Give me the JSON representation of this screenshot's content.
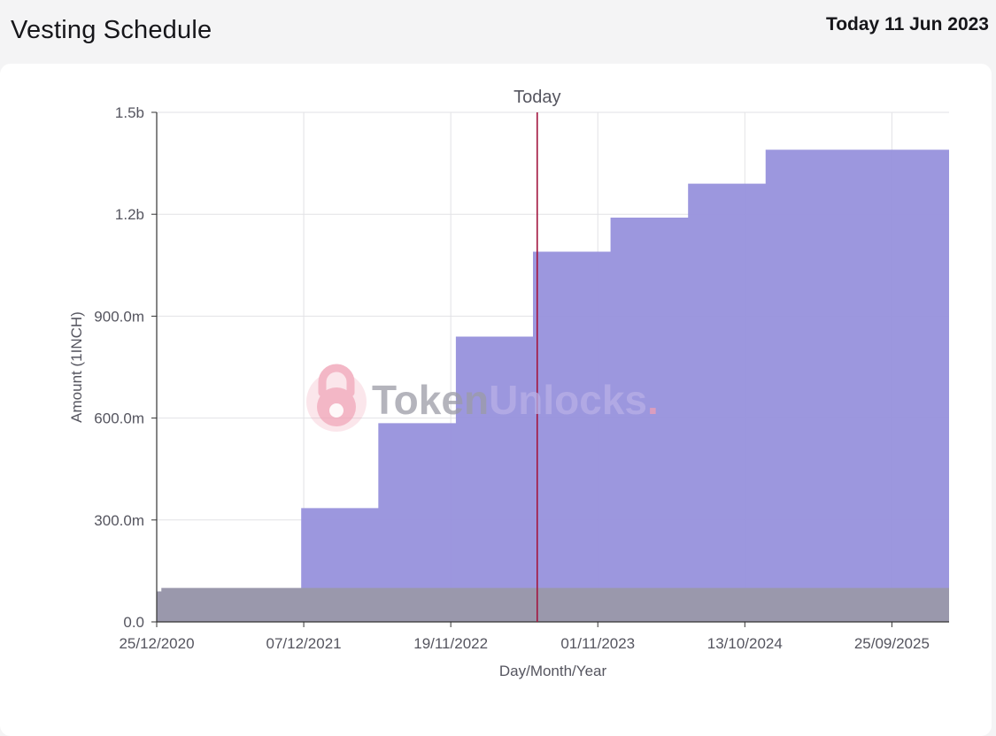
{
  "header": {
    "title": "Vesting Schedule",
    "today_label": "Today 11 Jun 2023"
  },
  "watermark": {
    "part1": "Token",
    "part2": "Unlocks",
    "dot": ".",
    "color1": "#9b9ba6",
    "color2": "#b8b0e6",
    "logo_color": "#f0a0b4"
  },
  "chart_data": {
    "type": "area",
    "step": true,
    "stacked": true,
    "xlabel": "Day/Month/Year",
    "ylabel": "Amount (1INCH)",
    "x_range": [
      "2020-12-25",
      "2026-02-07"
    ],
    "ylim": [
      0,
      1500000000
    ],
    "y_ticks": [
      0,
      300000000,
      600000000,
      900000000,
      1200000000,
      1500000000
    ],
    "y_tick_labels": [
      "0.0",
      "300.0m",
      "600.0m",
      "900.0m",
      "1.2b",
      "1.5b"
    ],
    "x_ticks": [
      "2020-12-25",
      "2021-12-07",
      "2022-11-19",
      "2023-11-01",
      "2024-10-13",
      "2025-09-25"
    ],
    "x_tick_labels": [
      "25/12/2020",
      "07/12/2021",
      "19/11/2022",
      "01/11/2023",
      "13/10/2024",
      "25/09/2025"
    ],
    "grid": true,
    "today": {
      "label": "Today",
      "date": "2023-06-11",
      "color": "#a3163f"
    },
    "series": [
      {
        "color": "#9791dc",
        "steps": [
          [
            "2020-12-25",
            0
          ],
          [
            "2021-12-01",
            235000000
          ],
          [
            "2022-06-01",
            485000000
          ],
          [
            "2022-12-01",
            740000000
          ],
          [
            "2023-06-01",
            990000000
          ],
          [
            "2023-12-01",
            1090000000
          ],
          [
            "2024-06-01",
            1190000000
          ],
          [
            "2024-12-01",
            1290000000
          ],
          [
            "2026-02-07",
            1290000000
          ]
        ]
      },
      {
        "color": "#9a98ac",
        "steps": [
          [
            "2020-12-25",
            90000000
          ],
          [
            "2021-01-05",
            100000000
          ],
          [
            "2026-02-07",
            100000000
          ]
        ]
      }
    ]
  }
}
